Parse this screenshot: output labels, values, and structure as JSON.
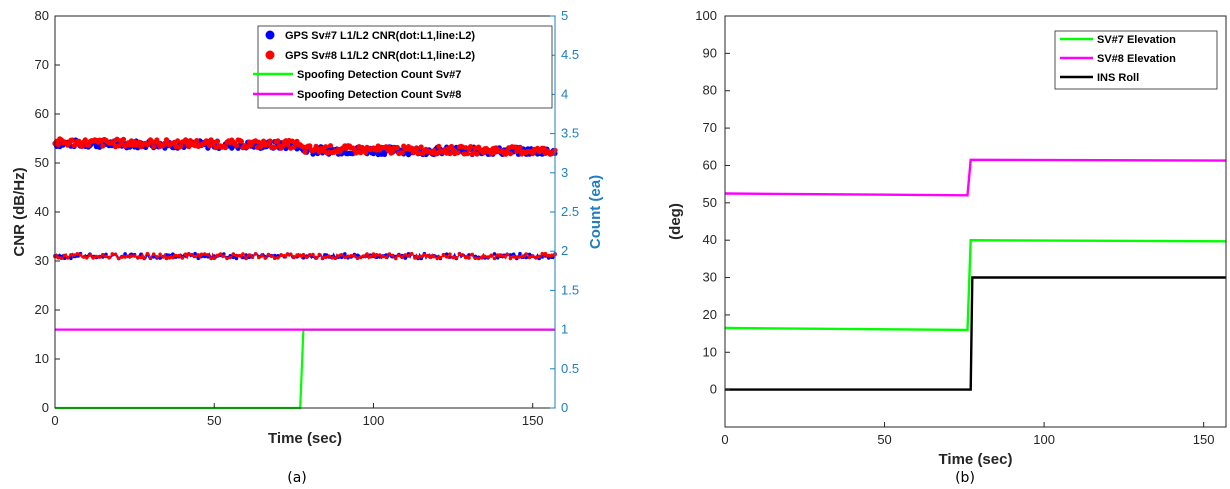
{
  "chart_data": [
    {
      "type": "line",
      "caption": "(a)",
      "xlabel": "Time (sec)",
      "ylabel": "CNR (dB/Hz)",
      "ylabel_right": "Count (ea)",
      "xlim": [
        0,
        157
      ],
      "ylim": [
        0,
        80
      ],
      "ylim_right": [
        0,
        5
      ],
      "xticks": [
        "0",
        "50",
        "100",
        "150"
      ],
      "yticks": [
        "0",
        "10",
        "20",
        "30",
        "40",
        "50",
        "60",
        "70",
        "80"
      ],
      "yticks_right": [
        "0",
        "0.5",
        "1",
        "1.5",
        "2",
        "2.5",
        "3",
        "3.5",
        "4",
        "4.5",
        "5"
      ],
      "legend_position": "top-right",
      "legend": [
        "GPS Sv#7 L1/L2 CNR(dot:L1,line:L2)",
        "GPS Sv#8 L1/L2 CNR(dot:L1,line:L2)",
        "Spoofing Detection Count Sv#7",
        "Spoofing Detection Count Sv#8"
      ],
      "series": [
        {
          "name": "GPS Sv#7 L1/L2 CNR(dot:L1,line:L2)",
          "color": "#0000ff",
          "axis": "left",
          "marker": "dot",
          "x": [
            0,
            76,
            78,
            157
          ],
          "y_l1": [
            54.0,
            53.6,
            52.6,
            52.4
          ],
          "y_l2": [
            31.0,
            31.0,
            31.0,
            31.0
          ]
        },
        {
          "name": "GPS Sv#8 L1/L2 CNR(dot:L1,line:L2)",
          "color": "#ff0000",
          "axis": "left",
          "marker": "dot",
          "x": [
            0,
            76,
            78,
            157
          ],
          "y_l1": [
            54.2,
            53.8,
            52.8,
            52.5
          ],
          "y_l2": [
            31.0,
            31.0,
            31.0,
            31.0
          ]
        },
        {
          "name": "Spoofing Detection Count Sv#7",
          "color": "#00ff00",
          "axis": "right",
          "x": [
            0,
            77,
            78,
            157
          ],
          "y": [
            0,
            0,
            1,
            1
          ]
        },
        {
          "name": "Spoofing Detection Count Sv#8",
          "color": "#ff00ff",
          "axis": "right",
          "x": [
            0,
            157
          ],
          "y": [
            1,
            1
          ]
        }
      ]
    },
    {
      "type": "line",
      "caption": "(b)",
      "xlabel": "Time (sec)",
      "ylabel": "(deg)",
      "xlim": [
        0,
        157
      ],
      "ylim": [
        -10,
        100
      ],
      "xticks": [
        "0",
        "50",
        "100",
        "150"
      ],
      "yticks": [
        "0",
        "10",
        "20",
        "30",
        "40",
        "50",
        "60",
        "70",
        "80",
        "90",
        "100"
      ],
      "legend_position": "top-right",
      "legend": [
        "SV#7 Elevation",
        "SV#8 Elevation",
        "INS Roll"
      ],
      "series": [
        {
          "name": "SV#7 Elevation",
          "color": "#00ff00",
          "x": [
            0,
            76,
            77,
            157
          ],
          "y": [
            16.5,
            16.0,
            40.0,
            39.7
          ]
        },
        {
          "name": "SV#8 Elevation",
          "color": "#ff00ff",
          "x": [
            0,
            76,
            77,
            157
          ],
          "y": [
            52.5,
            52.0,
            61.5,
            61.3
          ]
        },
        {
          "name": "INS Roll",
          "color": "#000000",
          "x": [
            0,
            77,
            77.5,
            157
          ],
          "y": [
            0,
            0,
            30,
            30
          ]
        }
      ]
    }
  ]
}
